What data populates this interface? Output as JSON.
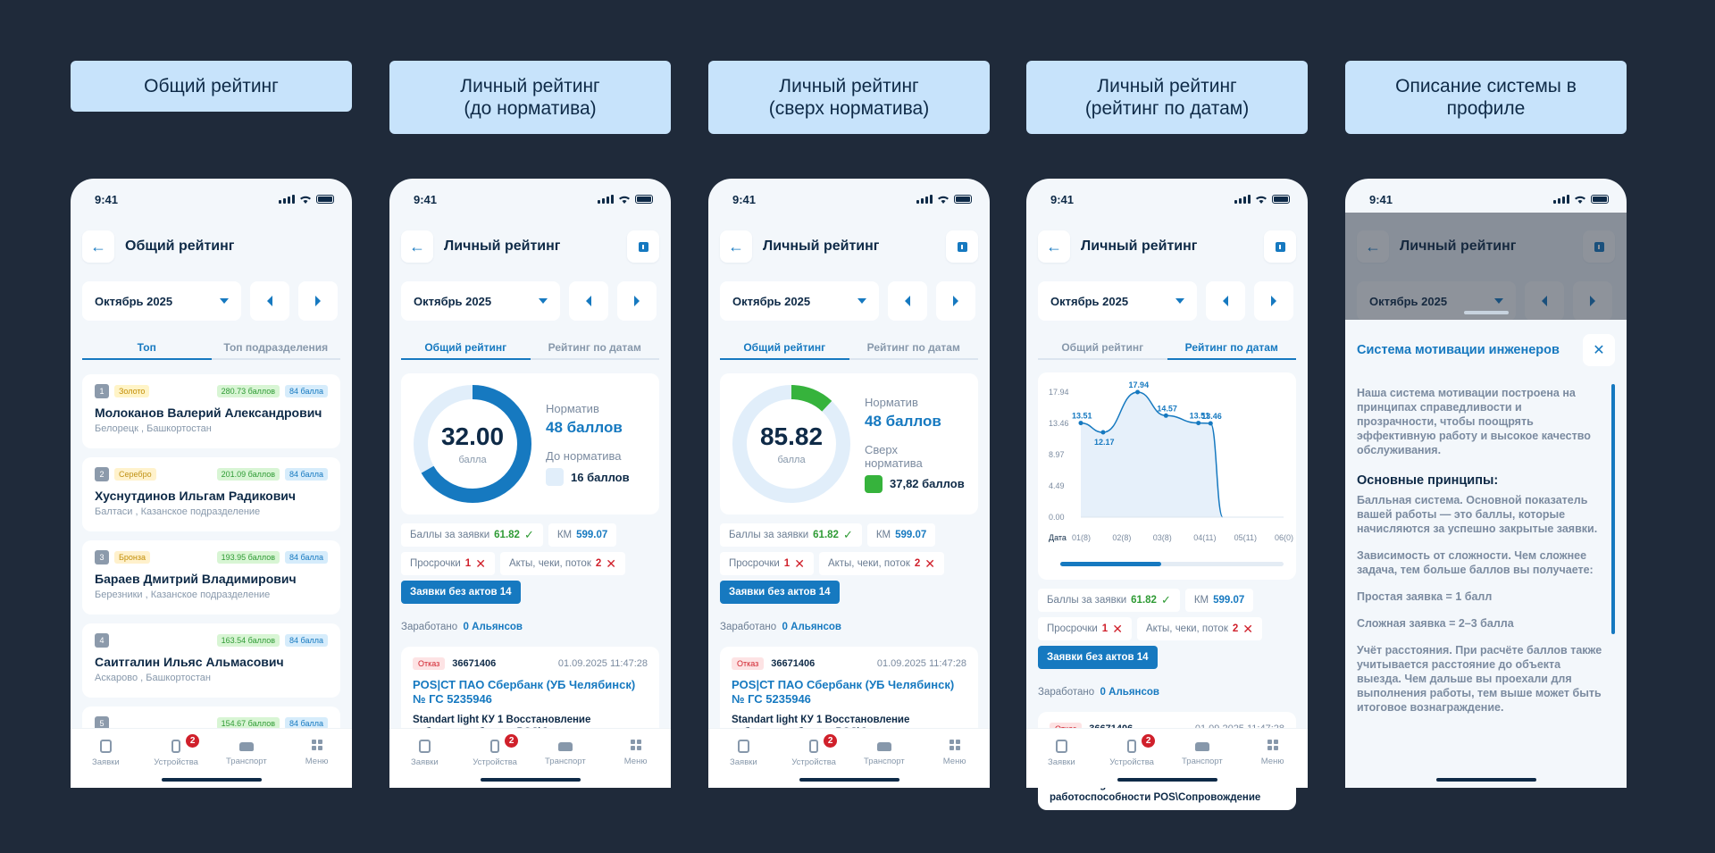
{
  "captions": [
    {
      "text": "Общий рейтинг"
    },
    {
      "line1": "Личный рейтинг",
      "line2": "(до норматива)"
    },
    {
      "line1": "Личный рейтинг",
      "line2": "(сверх норматива)"
    },
    {
      "line1": "Личный рейтинг",
      "line2": "(рейтинг по датам)"
    },
    {
      "line1": "Описание системы в",
      "line2": "профиле"
    }
  ],
  "common": {
    "time": "9:41",
    "month": "Октябрь 2025",
    "tabbar": {
      "orders": "Заявки",
      "devices": "Устройства",
      "transport": "Транспорт",
      "menu": "Меню",
      "badge": "2"
    }
  },
  "screen1": {
    "title": "Общий рейтинг",
    "tabs": [
      "Топ",
      "Топ подразделения"
    ],
    "items": [
      {
        "num": "1",
        "medal": "Золото",
        "points": "280.73 баллов",
        "norm": "84 балла",
        "name": "Молоканов Валерий Александрович",
        "loc": "Белорецк , Башкортостан"
      },
      {
        "num": "2",
        "medal": "Серебро",
        "points": "201.09 баллов",
        "norm": "84 балла",
        "name": "Хуснутдинов Ильгам Радикович",
        "loc": "Балтаси , Казанское подразделение"
      },
      {
        "num": "3",
        "medal": "Бронза",
        "points": "193.95 баллов",
        "norm": "84 балла",
        "name": "Бараев Дмитрий Владимирович",
        "loc": "Березники , Казанское подразделение"
      },
      {
        "num": "4",
        "points": "163.54 баллов",
        "norm": "84 балла",
        "name": "Саитгалин Ильяс Альмасович",
        "loc": "Аскарово , Башкортостан"
      },
      {
        "num": "5",
        "points": "154.67 баллов",
        "norm": "84 балла"
      }
    ]
  },
  "personal": {
    "title": "Личный рейтинг",
    "tabs": [
      "Общий рейтинг",
      "Рейтинг по датам"
    ],
    "norm_label": "Норматив",
    "norm_value": "48 баллов",
    "gauge_unit": "балла",
    "before_label": "До норматива",
    "before_value": "16 баллов",
    "above_label_1": "Сверх",
    "above_label_2": "норматива",
    "above_value": "37,82 баллов",
    "chip_orders_label": "Баллы за заявки",
    "chip_orders_value": "61.82",
    "chip_km_label": "КМ",
    "chip_km_value": "599.07",
    "chip_overdue_label": "Просрочки",
    "chip_overdue_value": "1",
    "chip_acts_label": "Акты, чеки, поток",
    "chip_acts_value": "2",
    "chip_noacts": "Заявки без актов 14",
    "earned_label": "Заработано",
    "earned_value": "0 Альянсов",
    "order": {
      "status": "Отказ",
      "id": "36671406",
      "date": "01.09.2025 11:47:28",
      "title": "POS|СТ ПАО Сбербанк (УБ Челябинск) № ГС 5235946",
      "desc": "Standart light КУ 1 Восстановление работоспособности POS\\Сопровождение"
    }
  },
  "screen2": {
    "gauge_value": "32.00",
    "progress": 0.667,
    "color": "#1679c0"
  },
  "screen3": {
    "gauge_value": "85.82",
    "progress_green": 0.12,
    "color": "#36b33c"
  },
  "screen4": {
    "chart_data": {
      "type": "line",
      "x": [
        "01(8)",
        "02(8)",
        "03(8)",
        "04(11)",
        "05(11)",
        "06(0)"
      ],
      "xlabel": "Дата",
      "yticks": [
        "17.94",
        "13.46",
        "8.97",
        "4.49",
        "0.00"
      ],
      "ylim": [
        0,
        17.94
      ],
      "points": [
        {
          "x": 0,
          "y": 13.51,
          "label": "13.51"
        },
        {
          "x": 0.55,
          "y": 12.17,
          "label": "12.17"
        },
        {
          "x": 1.4,
          "y": 17.94,
          "label": "17.94"
        },
        {
          "x": 2.1,
          "y": 14.57,
          "label": "14.57"
        },
        {
          "x": 2.9,
          "y": 13.51,
          "label": "13.51"
        },
        {
          "x": 3.2,
          "y": 13.46,
          "label": "13.46"
        },
        {
          "x": 3.5,
          "y": 0,
          "label": ""
        }
      ]
    }
  },
  "screen5": {
    "sheet_title": "Система мотивации инженеров",
    "intro": "Наша система мотивации построена на принципах справедливости и прозрачности, чтобы поощрять эффективную работу и высокое качество обслуживания.",
    "principles": "Основные принципы:",
    "p1": "Балльная система. Основной показатель вашей работы — это баллы, которые начисляются за успешно закрытые заявки.",
    "p2": "Зависимость от сложности. Чем сложнее задача, тем больше баллов вы получаете:",
    "p3": "Простая заявка = 1 балл",
    "p4": "Сложная заявка = 2–3 балла",
    "p5": "Учёт расстояния. При расчёте баллов также учитывается расстояние до объекта выезда. Чем дальше вы проехали для выполнения работы, тем выше может быть итоговое вознаграждение."
  }
}
